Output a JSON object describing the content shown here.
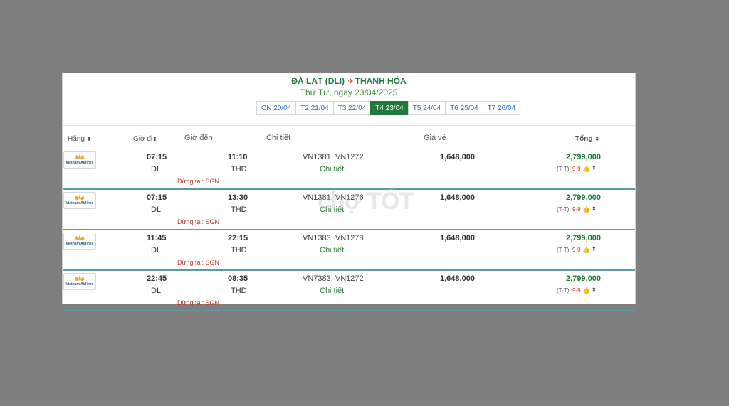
{
  "route": {
    "origin": "ĐÀ LẠT (DLI)",
    "destination": "THANH HÓA"
  },
  "date_label": "Thứ Tư, ngày 23/04/2025",
  "tabs": [
    {
      "label": "CN 20/04"
    },
    {
      "label": "T2 21/04"
    },
    {
      "label": "T3 22/04"
    },
    {
      "label": "T4 23/04",
      "active": true
    },
    {
      "label": "T5 24/04"
    },
    {
      "label": "T6 25/04"
    },
    {
      "label": "T7 26/04"
    }
  ],
  "columns": {
    "airline": "Hãng",
    "depart": "Giờ đi",
    "arrive": "Giờ đến",
    "detail": "Chi tiết",
    "fare": "Giá vé",
    "total": "Tổng"
  },
  "airline_logo_text": "Vietnam Airlines",
  "rows": [
    {
      "depart_time": "07:15",
      "depart_code": "DLI",
      "arrive_time": "11:10",
      "arrive_code": "THD",
      "flights": "VN1381, VN1272",
      "detail": "Chi tiết",
      "stop": "Dừng tại: SGN",
      "fare": "1,648,000",
      "total": "2,799,000",
      "fare_class": "(T-T)",
      "rating": "9-9"
    },
    {
      "depart_time": "07:15",
      "depart_code": "DLI",
      "arrive_time": "13:30",
      "arrive_code": "THD",
      "flights": "VN1381, VN1276",
      "detail": "Chi tiết",
      "stop": "Dừng tại: SGN",
      "fare": "1,648,000",
      "total": "2,799,000",
      "fare_class": "(T-T)",
      "rating": "9-9"
    },
    {
      "depart_time": "11:45",
      "depart_code": "DLI",
      "arrive_time": "22:15",
      "arrive_code": "THD",
      "flights": "VN1383, VN1278",
      "detail": "Chi tiết",
      "stop": "Dừng tại: SGN",
      "fare": "1,648,000",
      "total": "2,799,000",
      "fare_class": "(T-T)",
      "rating": "9-9"
    },
    {
      "depart_time": "22:45",
      "depart_code": "DLI",
      "arrive_time": "08:35",
      "arrive_code": "THD",
      "flights": "VN7383, VN1272",
      "detail": "Chi tiết",
      "stop": "Dừng tại: SGN",
      "fare": "1,648,000",
      "total": "2,799,000",
      "fare_class": "(T-T)",
      "rating": "9-9"
    }
  ],
  "watermark": "chợ TỐT",
  "colors": {
    "brand_green": "#1f7a3a",
    "active_tab": "#217a3c",
    "stop_red": "#c0392b",
    "divider": "#5b9aa8"
  },
  "icons": {
    "plane": "plane-icon",
    "sort": "sort-icon",
    "thumbs_up": "thumbs-up-icon"
  }
}
